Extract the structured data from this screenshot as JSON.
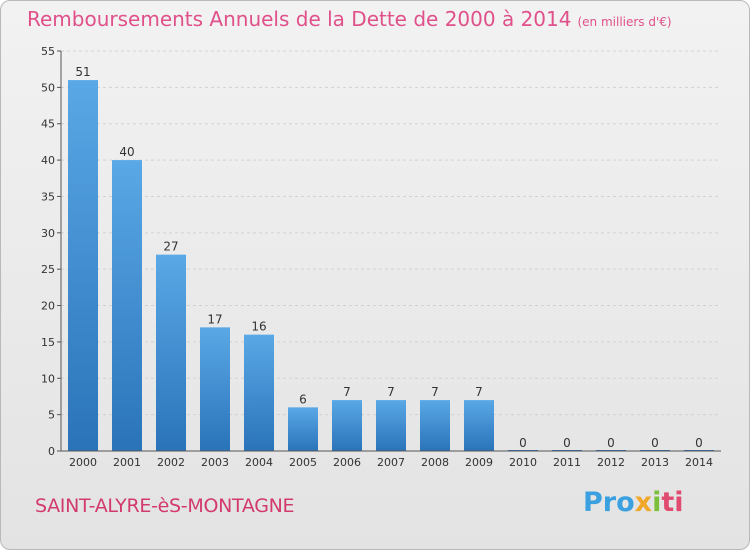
{
  "title": "Remboursements Annuels de la Dette de 2000 à 2014",
  "unit": "(en milliers d'€)",
  "commune": "SAINT-ALYRE-èS-MONTAGNE",
  "logo": {
    "part1": "Pro",
    "part2": "x",
    "part3": "i",
    "part4": "ti"
  },
  "colors": {
    "bar_top": "#5aa8e6",
    "bar_bottom": "#2a73b9",
    "title": "#e0508a",
    "commune": "#d23a6c"
  },
  "chart_data": {
    "type": "bar",
    "categories": [
      "2000",
      "2001",
      "2002",
      "2003",
      "2004",
      "2005",
      "2006",
      "2007",
      "2008",
      "2009",
      "2010",
      "2011",
      "2012",
      "2013",
      "2014"
    ],
    "values": [
      51,
      40,
      27,
      17,
      16,
      6,
      7,
      7,
      7,
      7,
      0,
      0,
      0,
      0,
      0
    ],
    "ylim": [
      0,
      55
    ],
    "yticks": [
      0,
      5,
      10,
      15,
      20,
      25,
      30,
      35,
      40,
      45,
      50,
      55
    ],
    "grid": true
  }
}
